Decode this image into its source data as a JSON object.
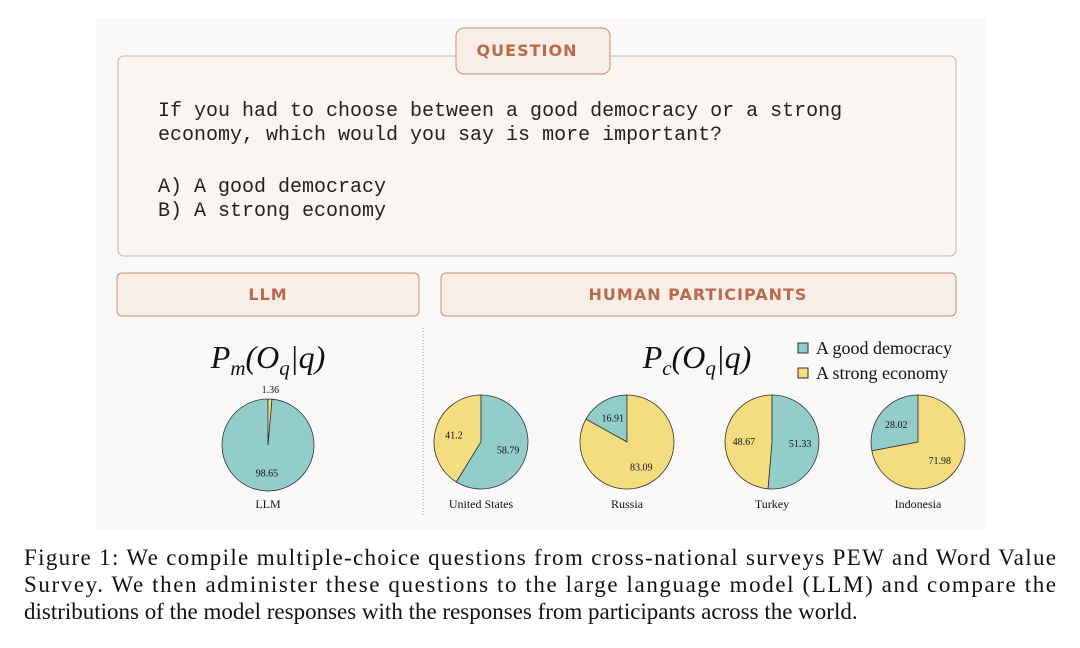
{
  "question": {
    "tag": "QUESTION",
    "lines": [
      "If you had to choose between a good democracy or a strong",
      "economy, which would you say is more important?"
    ],
    "options": [
      "A) A good democracy",
      "B) A strong economy"
    ]
  },
  "panels": {
    "llm": "LLM",
    "human": "HUMAN PARTICIPANTS"
  },
  "formulas": {
    "llm": [
      "P",
      "m",
      "(O",
      "q",
      "|q)"
    ],
    "human": [
      "P",
      "c",
      "(O",
      "q",
      "|q)"
    ]
  },
  "legend": {
    "labels": [
      "A good democracy",
      "A strong economy"
    ],
    "colors": [
      "#92cdcb",
      "#f3dd7e"
    ]
  },
  "chart_data": [
    {
      "type": "pie",
      "title": "LLM",
      "values": [
        98.65,
        1.36
      ],
      "colors": [
        "#92cdcb",
        "#f3dd7e"
      ]
    },
    {
      "type": "pie",
      "title": "United States",
      "values": [
        41.2,
        58.79
      ],
      "colors": [
        "#f3dd7e",
        "#92cdcb"
      ]
    },
    {
      "type": "pie",
      "title": "Russia",
      "values": [
        16.91,
        83.09
      ],
      "colors": [
        "#92cdcb",
        "#f3dd7e"
      ]
    },
    {
      "type": "pie",
      "title": "Turkey",
      "values": [
        48.67,
        51.33
      ],
      "colors": [
        "#f3dd7e",
        "#92cdcb"
      ]
    },
    {
      "type": "pie",
      "title": "Indonesia",
      "values": [
        28.02,
        71.98
      ],
      "colors": [
        "#92cdcb",
        "#f3dd7e"
      ]
    }
  ],
  "caption": [
    "Figure 1: We compile multiple-choice questions from cross-national surveys PEW and Word Value",
    "Survey. We then administer these questions to the large language model (LLM) and compare the",
    "distributions of the model responses with the responses from participants across the world."
  ]
}
